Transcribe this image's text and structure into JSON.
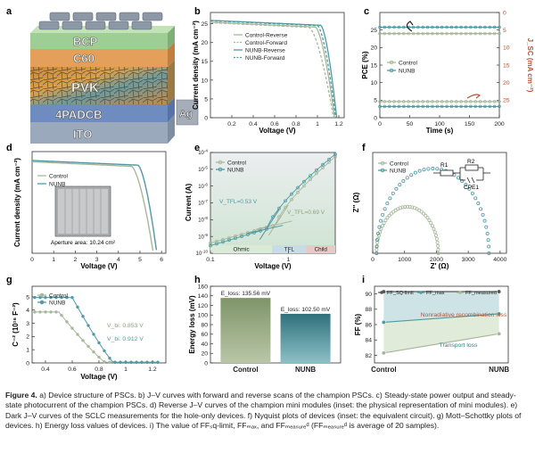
{
  "panel_letters": [
    "a",
    "b",
    "c",
    "d",
    "e",
    "f",
    "g",
    "h",
    "i"
  ],
  "device_layers": [
    "BCP",
    "C60",
    "PVK",
    "4PADCB",
    "ITO",
    "Ag"
  ],
  "chart_data": [
    {
      "id": "b",
      "type": "line",
      "xlabel": "Voltage (V)",
      "ylabel": "Current density (mA cm⁻²)",
      "xlim": [
        0,
        1.25
      ],
      "ylim": [
        0,
        28
      ],
      "xticks": [
        0.2,
        0.4,
        0.6,
        0.8,
        1.0,
        1.2
      ],
      "yticks": [
        0,
        5,
        10,
        15,
        20,
        25
      ],
      "legend_position": "top-right",
      "series": [
        {
          "name": "Control-Reverse",
          "color": "#a7b89a",
          "dash": false,
          "jsc": 25.4,
          "voc": 1.16,
          "vknee": 0.98
        },
        {
          "name": "Control-Forward",
          "color": "#a7b89a",
          "dash": true,
          "jsc": 25.3,
          "voc": 1.15,
          "vknee": 0.92
        },
        {
          "name": "NUNB-Reverse",
          "color": "#4f9aa3",
          "dash": false,
          "jsc": 25.9,
          "voc": 1.18,
          "vknee": 1.03
        },
        {
          "name": "NUNB-Forward",
          "color": "#4f9aa3",
          "dash": true,
          "jsc": 25.8,
          "voc": 1.17,
          "vknee": 1.0
        }
      ]
    },
    {
      "id": "c",
      "type": "line",
      "xlabel": "Time (s)",
      "ylabel": "PCE (%)",
      "ylabel_right": "J_SC (mA cm⁻²)",
      "xlim": [
        0,
        200
      ],
      "ylim": [
        0,
        30
      ],
      "ylim_right": [
        30,
        0
      ],
      "xticks": [
        0,
        50,
        100,
        150,
        200
      ],
      "yticks": [
        0,
        5,
        10,
        15,
        20,
        25
      ],
      "yticks_right": [
        0,
        5,
        10,
        15,
        20,
        25
      ],
      "legend_position": "center-left",
      "series": [
        {
          "name": "Control",
          "axis": "left",
          "value": 24.0,
          "color": "#a7b89a"
        },
        {
          "name": "NUNB",
          "axis": "left",
          "value": 25.8,
          "color": "#4f9aa3"
        },
        {
          "name": "",
          "axis": "right",
          "value": 25.4,
          "color": "#a7b89a"
        },
        {
          "name": "",
          "axis": "right",
          "value": 26.8,
          "color": "#4f9aa3"
        }
      ]
    },
    {
      "id": "d",
      "type": "line",
      "xlabel": "Voltage (V)",
      "ylabel": "Current density (mA cm⁻²)",
      "xlim": [
        0,
        6.2
      ],
      "ylim": [
        0,
        4.8
      ],
      "xticks": [
        0,
        1,
        2,
        3,
        4,
        5,
        6
      ],
      "legend_position": "top-left",
      "inset_label": "Aperture area: 10.24 cm²",
      "series": [
        {
          "name": "Control",
          "color": "#a7b89a",
          "jsc": 4.32,
          "voc": 5.62,
          "vknee": 4.6
        },
        {
          "name": "NUNB",
          "color": "#4f9aa3",
          "jsc": 4.38,
          "voc": 5.78,
          "vknee": 4.9
        }
      ]
    },
    {
      "id": "e",
      "type": "line",
      "log_x": true,
      "log_y": true,
      "xlabel": "Voltage (V)",
      "ylabel": "Current (A)",
      "xlim": [
        0.1,
        4
      ],
      "ylim_exp": [
        -10,
        -4
      ],
      "xticks": [
        0.1,
        1
      ],
      "xtick_labels": [
        "0.1",
        "1"
      ],
      "yticks_exp": [
        -10,
        -9,
        -8,
        -7,
        -6,
        -5,
        -4
      ],
      "legend_position": "top-left",
      "regions": [
        "Ohmic",
        "TFL",
        "Child"
      ],
      "region_bounds": [
        0.1,
        0.62,
        1.7,
        4
      ],
      "annotations": [
        {
          "text": "V_TFL=0.53 V",
          "color": "#4f9aa3",
          "v": 0.53
        },
        {
          "text": "V_TFL=0.69 V",
          "color": "#8fa37a",
          "v": 0.69
        }
      ],
      "series": [
        {
          "name": "Control",
          "color": "#a7b89a",
          "v1": 0.69,
          "i0": -9.4,
          "i1": -8.3,
          "i_end": -4.25
        },
        {
          "name": "NUNB",
          "color": "#4f9aa3",
          "v1": 0.53,
          "i0": -9.55,
          "i1": -8.55,
          "i_end": -4.1
        }
      ]
    },
    {
      "id": "f",
      "type": "scatter",
      "xlabel": "Z′ (Ω)",
      "ylabel": "Z″ (Ω)",
      "xlim": [
        0,
        4200
      ],
      "ylim": [
        0,
        2100
      ],
      "xticks": [
        0,
        1000,
        2000,
        3000,
        4000
      ],
      "legend_position": "top-left",
      "circuit_labels": [
        "R1",
        "R2",
        "CPE1"
      ],
      "series": [
        {
          "name": "Control",
          "color": "#a7b89a",
          "r_start": 120,
          "r_end": 2060
        },
        {
          "name": "NUNB",
          "color": "#4f9aa3",
          "r_start": 120,
          "r_end": 3650
        }
      ]
    },
    {
      "id": "g",
      "type": "line",
      "xlabel": "Voltage (V)",
      "ylabel": "C⁻² (10¹⁶ F⁻²)",
      "xlim": [
        0.3,
        1.3
      ],
      "ylim": [
        0,
        5.8
      ],
      "xticks": [
        0.4,
        0.6,
        0.8,
        1.0,
        1.2
      ],
      "yticks": [
        0,
        1,
        2,
        3,
        4,
        5
      ],
      "legend_position": "top-left",
      "annotations": [
        {
          "text": "V_bi: 0.853 V",
          "color": "#8fa37a"
        },
        {
          "text": "V_bi: 0.912 V",
          "color": "#4f9aa3"
        }
      ],
      "series": [
        {
          "name": "Control",
          "color": "#a7b89a",
          "vbi": 0.853,
          "plateau": 3.85,
          "knee": 0.5
        },
        {
          "name": "NUNB",
          "color": "#4f9aa3",
          "vbi": 0.912,
          "plateau": 4.95,
          "knee": 0.6
        }
      ]
    },
    {
      "id": "h",
      "type": "bar",
      "categories": [
        "Control",
        "NUNB"
      ],
      "values": [
        135.56,
        102.5
      ],
      "ylabel": "Energy loss (mV)",
      "ylim": [
        0,
        160
      ],
      "yticks": [
        0,
        20,
        40,
        60,
        80,
        100,
        120,
        140,
        160
      ],
      "bar_labels": [
        "E_loss: 135.56 mV",
        "E_loss: 102.50 mV"
      ],
      "colors": [
        "#8fa37a",
        "#3d7f88"
      ]
    },
    {
      "id": "i",
      "type": "line",
      "categories": [
        "Control",
        "NUNB"
      ],
      "ylabel": "FF (%)",
      "ylim": [
        81,
        91
      ],
      "yticks": [
        82,
        84,
        86,
        88,
        90
      ],
      "legend_position": "top",
      "region_labels": [
        "Nonradiative recombination loss",
        "Transport loss"
      ],
      "series": [
        {
          "name": "FF_SQ-limit",
          "values": [
            90.3,
            90.3
          ],
          "color": "#555555"
        },
        {
          "name": "FF_max",
          "values": [
            86.3,
            87.4
          ],
          "color": "#4f9aa3"
        },
        {
          "name": "FF_measured",
          "values": [
            82.3,
            84.8
          ],
          "color": "#a7b89a"
        }
      ]
    }
  ],
  "caption": {
    "label": "Figure 4.",
    "text": "a) Device structure of PSCs. b) J–V curves with forward and reverse scans of the champion PSCs. c) Steady-state power output and steady-state photocurrent of the champion PSCs. d) Reverse J–V curves of the champion mini modules (inset: the physical representation of mini modules). e) Dark J–V curves of the SCLC measurements for the hole-only devices. f) Nyquist plots of devices (inset: the equivalent circuit). g) Mott–Schottky plots of devices. h) Energy loss values of devices. i) The value of FFₛq-limit, FFₘₐₓ, and FFₘₑₐₛᵤᵣₑᵈ (FFₘₑₐₛᵤᵣₑᵈ is average of 20 samples)."
  }
}
